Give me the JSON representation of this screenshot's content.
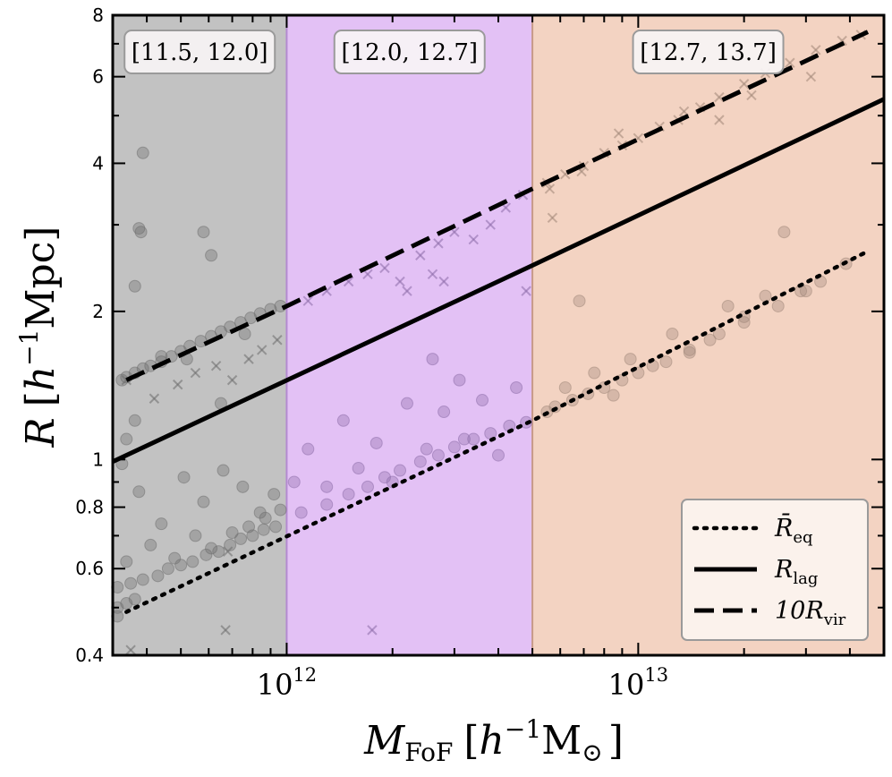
{
  "chart_data": {
    "type": "scatter",
    "xscale": "log",
    "yscale": "log",
    "xlim": [
      320000000000.0,
      50000000000000.0
    ],
    "ylim": [
      0.4,
      8
    ],
    "xlabel": {
      "main": "M",
      "sub": "FoF",
      "bracket_open": "[",
      "h": "h",
      "sup": "−1",
      "unit": "M",
      "unit_sub": "⊙",
      "bracket_close": "]"
    },
    "ylabel": {
      "main": "R",
      "bracket_open": "[",
      "h": "h",
      "sup": "−1",
      "unit": "Mpc",
      "bracket_close": "]"
    },
    "x_ticks": [
      {
        "base": "10",
        "exp": "12",
        "value": 1000000000000.0
      },
      {
        "base": "10",
        "exp": "13",
        "value": 10000000000000.0
      }
    ],
    "y_ticks": [
      {
        "label": "0.4",
        "value": 0.4
      },
      {
        "label": "0.6",
        "value": 0.6
      },
      {
        "label": "0.8",
        "value": 0.8
      },
      {
        "label": "1",
        "value": 1
      },
      {
        "label": "2",
        "value": 2
      },
      {
        "label": "4",
        "value": 4
      },
      {
        "label": "6",
        "value": 6
      },
      {
        "label": "8",
        "value": 8
      }
    ],
    "mass_bins": [
      {
        "label": "[11.5, 12.0]",
        "range": [
          320000000000.0,
          1000000000000.0
        ],
        "color": "#c2c2c2",
        "edge": "#8a8a8a"
      },
      {
        "label": "[12.0, 12.7]",
        "range": [
          1000000000000.0,
          5000000000000.0
        ],
        "color": "#e3c1f5",
        "edge": "#b48ad0"
      },
      {
        "label": "[12.7, 13.7]",
        "range": [
          5000000000000.0,
          50000000000000.0
        ],
        "color": "#f3d3c2",
        "edge": "#c79a88"
      }
    ],
    "series": [
      {
        "name": "R̄_eq",
        "legend": {
          "main": "R̄",
          "sub": "eq"
        },
        "style": "dotted",
        "x": [
          350000000000.0,
          5000000000000.0,
          45000000000000.0
        ],
        "y": [
          0.49,
          1.2,
          2.65
        ]
      },
      {
        "name": "R_lag",
        "legend": {
          "main": "R",
          "sub": "lag"
        },
        "style": "solid",
        "x": [
          320000000000.0,
          5000000000000.0,
          50000000000000.0
        ],
        "y": [
          0.99,
          2.48,
          5.4
        ]
      },
      {
        "name": "10R_vir",
        "legend": {
          "main": "10R",
          "sub": "vir"
        },
        "style": "dashed",
        "x": [
          350000000000.0,
          1000000000000.0,
          5000000000000.0,
          45000000000000.0
        ],
        "y": [
          1.45,
          2.05,
          3.55,
          7.4
        ]
      }
    ],
    "scatter_points": {
      "marker_colors": {
        "gray": "#6b6b6b",
        "purple": "#8a6aa6",
        "brown": "#9e8577"
      },
      "circles": [
        [
          390000000000.0,
          4.2
        ],
        [
          380000000000.0,
          2.95
        ],
        [
          385000000000.0,
          2.9
        ],
        [
          370000000000.0,
          2.25
        ],
        [
          580000000000.0,
          2.9
        ],
        [
          610000000000.0,
          2.6
        ],
        [
          350000000000.0,
          1.1
        ],
        [
          370000000000.0,
          1.2
        ],
        [
          440000000000.0,
          1.62
        ],
        [
          520000000000.0,
          1.6
        ],
        [
          650000000000.0,
          1.3
        ],
        [
          760000000000.0,
          1.8
        ],
        [
          340000000000.0,
          0.98
        ],
        [
          380000000000.0,
          0.86
        ],
        [
          440000000000.0,
          0.74
        ],
        [
          510000000000.0,
          0.92
        ],
        [
          580000000000.0,
          0.82
        ],
        [
          660000000000.0,
          0.95
        ],
        [
          750000000000.0,
          0.88
        ],
        [
          840000000000.0,
          0.78
        ],
        [
          920000000000.0,
          0.85
        ],
        [
          350000000000.0,
          0.62
        ],
        [
          410000000000.0,
          0.67
        ],
        [
          480000000000.0,
          0.63
        ],
        [
          550000000000.0,
          0.7
        ],
        [
          610000000000.0,
          0.66
        ],
        [
          700000000000.0,
          0.71
        ],
        [
          780000000000.0,
          0.73
        ],
        [
          870000000000.0,
          0.76
        ],
        [
          960000000000.0,
          0.79
        ],
        [
          330000000000.0,
          0.55
        ],
        [
          360000000000.0,
          0.56
        ],
        [
          390000000000.0,
          0.57
        ],
        [
          430000000000.0,
          0.58
        ],
        [
          460000000000.0,
          0.6
        ],
        [
          500000000000.0,
          0.61
        ],
        [
          540000000000.0,
          0.62
        ],
        [
          590000000000.0,
          0.64
        ],
        [
          640000000000.0,
          0.65
        ],
        [
          690000000000.0,
          0.67
        ],
        [
          740000000000.0,
          0.69
        ],
        [
          800000000000.0,
          0.7
        ],
        [
          860000000000.0,
          0.72
        ],
        [
          930000000000.0,
          0.73
        ],
        [
          330000000000.0,
          0.5
        ],
        [
          350000000000.0,
          0.51
        ],
        [
          370000000000.0,
          0.52
        ],
        [
          330000000000.0,
          0.48
        ],
        [
          340000000000.0,
          1.45
        ],
        [
          350000000000.0,
          1.47
        ],
        [
          370000000000.0,
          1.5
        ],
        [
          390000000000.0,
          1.53
        ],
        [
          410000000000.0,
          1.55
        ],
        [
          440000000000.0,
          1.58
        ],
        [
          470000000000.0,
          1.62
        ],
        [
          500000000000.0,
          1.66
        ],
        [
          530000000000.0,
          1.7
        ],
        [
          570000000000.0,
          1.74
        ],
        [
          610000000000.0,
          1.78
        ],
        [
          650000000000.0,
          1.82
        ],
        [
          690000000000.0,
          1.86
        ],
        [
          740000000000.0,
          1.9
        ],
        [
          790000000000.0,
          1.94
        ],
        [
          840000000000.0,
          1.98
        ],
        [
          900000000000.0,
          2.02
        ],
        [
          960000000000.0,
          2.05
        ],
        [
          1050000000000.0,
          0.9
        ],
        [
          1150000000000.0,
          1.05
        ],
        [
          1300000000000.0,
          0.88
        ],
        [
          1450000000000.0,
          1.2
        ],
        [
          1600000000000.0,
          0.96
        ],
        [
          1800000000000.0,
          1.08
        ],
        [
          2000000000000.0,
          0.9
        ],
        [
          2200000000000.0,
          1.3
        ],
        [
          2500000000000.0,
          1.05
        ],
        [
          2800000000000.0,
          1.25
        ],
        [
          3200000000000.0,
          1.1
        ],
        [
          3600000000000.0,
          1.32
        ],
        [
          4000000000000.0,
          1.02
        ],
        [
          4500000000000.0,
          1.4
        ],
        [
          1100000000000.0,
          0.78
        ],
        [
          1300000000000.0,
          0.81
        ],
        [
          1500000000000.0,
          0.85
        ],
        [
          1700000000000.0,
          0.88
        ],
        [
          1900000000000.0,
          0.92
        ],
        [
          2100000000000.0,
          0.95
        ],
        [
          2400000000000.0,
          0.99
        ],
        [
          2700000000000.0,
          1.02
        ],
        [
          3000000000000.0,
          1.06
        ],
        [
          3400000000000.0,
          1.1
        ],
        [
          3800000000000.0,
          1.13
        ],
        [
          4300000000000.0,
          1.17
        ],
        [
          4800000000000.0,
          1.19
        ],
        [
          2600000000000.0,
          1.6
        ],
        [
          3100000000000.0,
          1.45
        ],
        [
          5500000000000.0,
          1.25
        ],
        [
          6200000000000.0,
          1.4
        ],
        [
          6800000000000.0,
          2.1
        ],
        [
          7500000000000.0,
          1.5
        ],
        [
          8500000000000.0,
          1.35
        ],
        [
          9500000000000.0,
          1.6
        ],
        [
          11000000000000.0,
          1.55
        ],
        [
          12500000000000.0,
          1.8
        ],
        [
          14000000000000.0,
          1.65
        ],
        [
          16000000000000.0,
          1.75
        ],
        [
          18000000000000.0,
          2.05
        ],
        [
          20000000000000.0,
          1.95
        ],
        [
          23000000000000.0,
          2.15
        ],
        [
          26000000000000.0,
          2.9
        ],
        [
          29000000000000.0,
          2.2
        ],
        [
          33000000000000.0,
          2.3
        ],
        [
          39000000000000.0,
          2.5
        ],
        [
          5800000000000.0,
          1.28
        ],
        [
          6500000000000.0,
          1.32
        ],
        [
          7200000000000.0,
          1.36
        ],
        [
          8000000000000.0,
          1.4
        ],
        [
          9000000000000.0,
          1.45
        ],
        [
          10000000000000.0,
          1.5
        ],
        [
          12000000000000.0,
          1.58
        ],
        [
          14000000000000.0,
          1.67
        ],
        [
          17000000000000.0,
          1.8
        ],
        [
          20000000000000.0,
          1.9
        ],
        [
          25000000000000.0,
          2.05
        ],
        [
          30000000000000.0,
          2.2
        ]
      ],
      "crosses": [
        [
          350000000000.0,
          1.45
        ],
        [
          420000000000.0,
          1.33
        ],
        [
          490000000000.0,
          1.42
        ],
        [
          550000000000.0,
          1.5
        ],
        [
          630000000000.0,
          1.55
        ],
        [
          700000000000.0,
          1.45
        ],
        [
          780000000000.0,
          1.6
        ],
        [
          850000000000.0,
          1.67
        ],
        [
          940000000000.0,
          1.75
        ],
        [
          670000000000.0,
          0.45
        ],
        [
          360000000000.0,
          0.41
        ],
        [
          680000000000.0,
          0.65
        ],
        [
          1150000000000.0,
          2.1
        ],
        [
          1300000000000.0,
          2.2
        ],
        [
          1500000000000.0,
          2.3
        ],
        [
          1700000000000.0,
          2.38
        ],
        [
          1900000000000.0,
          2.45
        ],
        [
          2100000000000.0,
          2.3
        ],
        [
          2400000000000.0,
          2.6
        ],
        [
          2700000000000.0,
          2.75
        ],
        [
          3000000000000.0,
          2.9
        ],
        [
          3400000000000.0,
          2.8
        ],
        [
          3800000000000.0,
          3.0
        ],
        [
          4200000000000.0,
          3.25
        ],
        [
          4700000000000.0,
          3.45
        ],
        [
          2200000000000.0,
          2.2
        ],
        [
          2600000000000.0,
          2.38
        ],
        [
          1750000000000.0,
          0.45
        ],
        [
          2800000000000.0,
          2.3
        ],
        [
          4800000000000.0,
          2.2
        ],
        [
          5500000000000.0,
          3.65
        ],
        [
          6200000000000.0,
          3.8
        ],
        [
          7000000000000.0,
          3.95
        ],
        [
          8000000000000.0,
          4.2
        ],
        [
          9000000000000.0,
          4.35
        ],
        [
          10000000000000.0,
          4.5
        ],
        [
          11500000000000.0,
          4.75
        ],
        [
          13000000000000.0,
          4.9
        ],
        [
          15000000000000.0,
          5.2
        ],
        [
          17000000000000.0,
          5.45
        ],
        [
          20000000000000.0,
          5.8
        ],
        [
          23000000000000.0,
          6.1
        ],
        [
          27000000000000.0,
          6.4
        ],
        [
          32000000000000.0,
          6.8
        ],
        [
          38000000000000.0,
          7.1
        ],
        [
          43000000000000.0,
          7.3
        ],
        [
          5700000000000.0,
          3.1
        ],
        [
          6900000000000.0,
          3.85
        ],
        [
          8800000000000.0,
          4.6
        ],
        [
          17000000000000.0,
          4.9
        ],
        [
          21000000000000.0,
          5.5
        ],
        [
          31000000000000.0,
          6.0
        ],
        [
          13500000000000.0,
          5.1
        ],
        [
          5600000000000.0,
          3.55
        ]
      ]
    },
    "legend": {
      "position": "bottom-right"
    }
  }
}
